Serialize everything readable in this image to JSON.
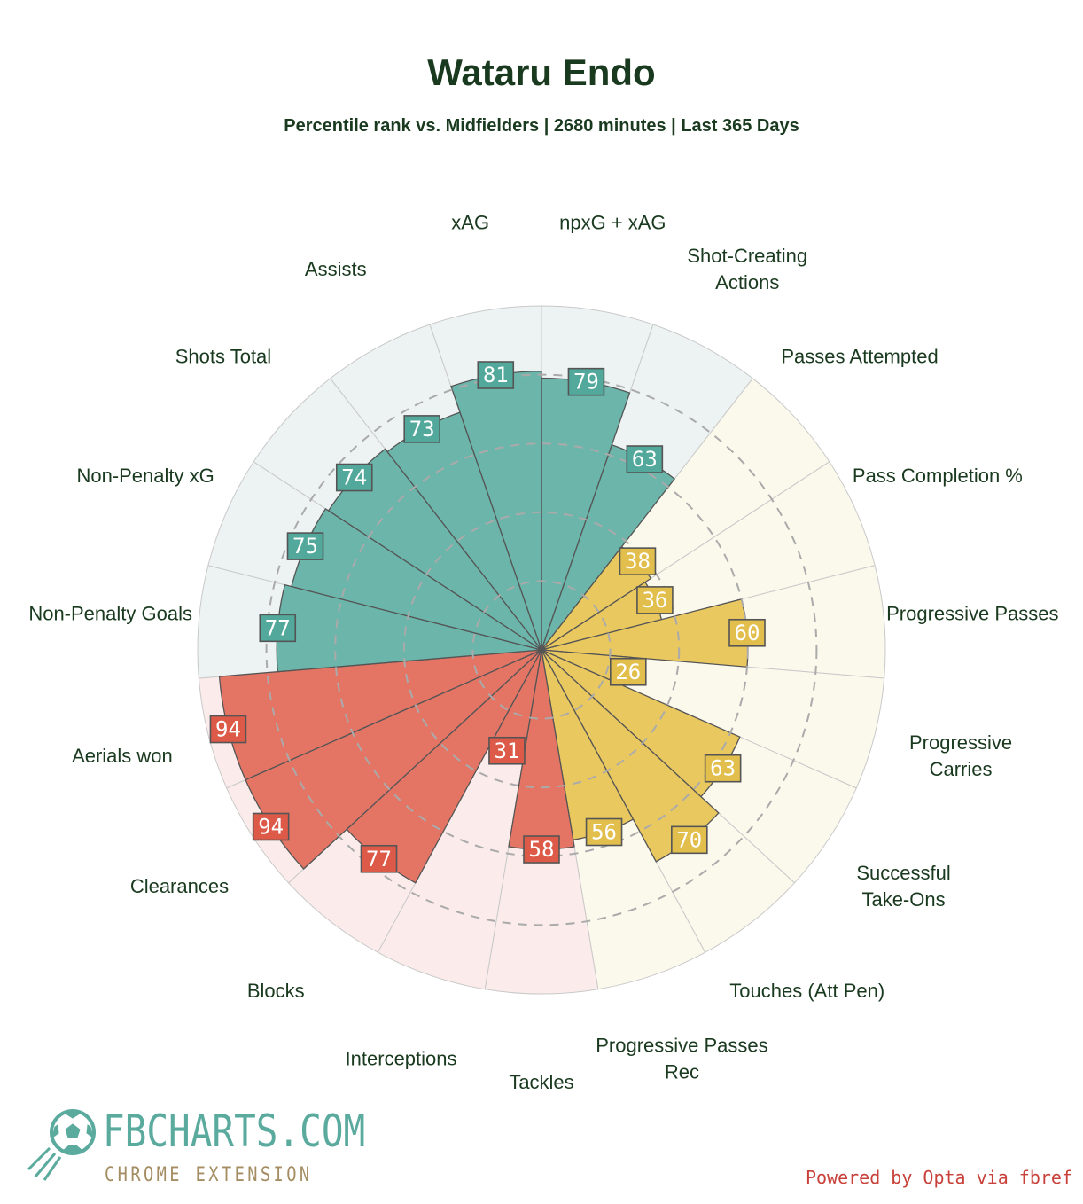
{
  "title": "Wataru Endo",
  "subtitle": "Percentile rank vs. Midfielders | 2680 minutes | Last 365 Days",
  "colors": {
    "title": "#1a3a1f",
    "label": "#1a3a1f",
    "attacking": "#6cb5aa",
    "attacking_bg": "#ecf3f2",
    "possession": "#e9c860",
    "possession_bg": "#fbf8ec",
    "defending": "#e47565",
    "defending_bg": "#fbeceb",
    "attacking_badge": "#52a89b",
    "possession_badge": "#e2bf4c",
    "defending_badge": "#dd5a48",
    "credit": "#c8413a",
    "logo": "#5aaa9e",
    "logo_sub": "#a48d62"
  },
  "chart_data": {
    "type": "polar-bar",
    "title": "Wataru Endo",
    "subtitle": "Percentile rank vs. Midfielders | 2680 minutes | Last 365 Days",
    "rlim": [
      0,
      100
    ],
    "gridlines": [
      20,
      40,
      60,
      80
    ],
    "series": [
      {
        "group": "attacking",
        "categories": [
          "npxG + xAG",
          "Shot-Creating Actions"
        ],
        "values": [
          79,
          63
        ]
      },
      {
        "group": "possession",
        "categories": [
          "Passes Attempted",
          "Pass Completion %",
          "Progressive Passes",
          "Progressive Carries",
          "Successful Take-Ons",
          "Touches (Att Pen)",
          "Progressive Passes Rec"
        ],
        "values": [
          38,
          36,
          60,
          26,
          63,
          70,
          56
        ]
      },
      {
        "group": "defending",
        "categories": [
          "Tackles",
          "Interceptions",
          "Blocks",
          "Clearances",
          "Aerials won"
        ],
        "values": [
          58,
          31,
          77,
          94,
          94
        ]
      },
      {
        "group": "attacking",
        "categories": [
          "Non-Penalty Goals",
          "Non-Penalty xG",
          "Shots Total",
          "Assists",
          "xAG"
        ],
        "values": [
          77,
          75,
          74,
          73,
          81
        ]
      }
    ],
    "stats": [
      {
        "label": "npxG + xAG",
        "value": 79,
        "group": "attacking"
      },
      {
        "label": "Shot-Creating Actions",
        "value": 63,
        "group": "attacking"
      },
      {
        "label": "Passes Attempted",
        "value": 38,
        "group": "possession"
      },
      {
        "label": "Pass Completion %",
        "value": 36,
        "group": "possession"
      },
      {
        "label": "Progressive Passes",
        "value": 60,
        "group": "possession"
      },
      {
        "label": "Progressive Carries",
        "value": 26,
        "group": "possession"
      },
      {
        "label": "Successful Take-Ons",
        "value": 63,
        "group": "possession"
      },
      {
        "label": "Touches (Att Pen)",
        "value": 70,
        "group": "possession"
      },
      {
        "label": "Progressive Passes Rec",
        "value": 56,
        "group": "possession"
      },
      {
        "label": "Tackles",
        "value": 58,
        "group": "defending"
      },
      {
        "label": "Interceptions",
        "value": 31,
        "group": "defending"
      },
      {
        "label": "Blocks",
        "value": 77,
        "group": "defending"
      },
      {
        "label": "Clearances",
        "value": 94,
        "group": "defending"
      },
      {
        "label": "Aerials won",
        "value": 94,
        "group": "defending"
      },
      {
        "label": "Non-Penalty Goals",
        "value": 77,
        "group": "attacking"
      },
      {
        "label": "Non-Penalty xG",
        "value": 75,
        "group": "attacking"
      },
      {
        "label": "Shots Total",
        "value": 74,
        "group": "attacking"
      },
      {
        "label": "Assists",
        "value": 73,
        "group": "attacking"
      },
      {
        "label": "xAG",
        "value": 81,
        "group": "attacking"
      }
    ]
  },
  "logo": {
    "name": "FBCHARTS.COM",
    "tagline": "CHROME EXTENSION",
    "icon": "soccer-ball-icon"
  },
  "credit": "Powered by Opta via fbref"
}
